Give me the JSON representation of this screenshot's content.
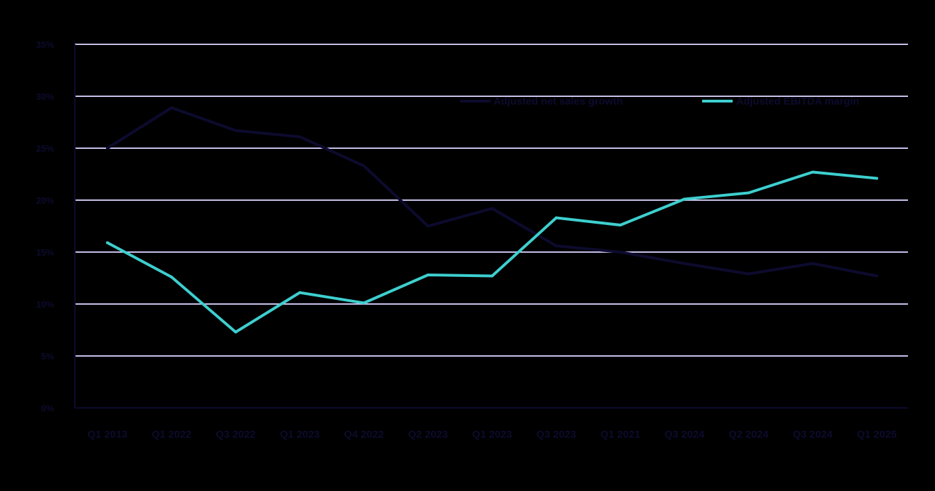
{
  "chart_data": {
    "type": "line",
    "categories": [
      "Q1 2013",
      "Q1 2022",
      "Q3 2022",
      "Q1 2023",
      "Q4 2022",
      "Q2 2023",
      "Q1 2023",
      "Q3 2023",
      "Q1 2021",
      "Q3 2024",
      "Q2 2024",
      "Q3 2024",
      "Q1 2025"
    ],
    "ylim": [
      0,
      35
    ],
    "y_ticks": [
      0,
      5,
      10,
      15,
      20,
      25,
      30,
      35
    ],
    "y_tick_labels": [
      "0%",
      "5%",
      "10%",
      "15%",
      "20%",
      "25%",
      "30%",
      "35%"
    ],
    "grid": true,
    "legend_position": "top-right",
    "series": [
      {
        "name": "Adjusted net sales growth",
        "color": "#0c0b2e",
        "values": [
          25,
          28.9,
          26.7,
          26.1,
          23.3,
          17.5,
          19.2,
          15.6,
          15,
          13.9,
          12.9,
          13.9,
          12.7
        ]
      },
      {
        "name": "Adjusted EBITDA margin",
        "color": "#3ecfcf",
        "values": [
          15.9,
          12.6,
          7.3,
          11.1,
          10.1,
          12.8,
          12.7,
          18.3,
          17.6,
          20.1,
          20.7,
          22.7,
          22.1
        ]
      }
    ]
  },
  "colors": {
    "background": "#000000",
    "gridline": "#c9c3ec",
    "text": "#0c0b2e",
    "axis": "#0c0b2e"
  }
}
